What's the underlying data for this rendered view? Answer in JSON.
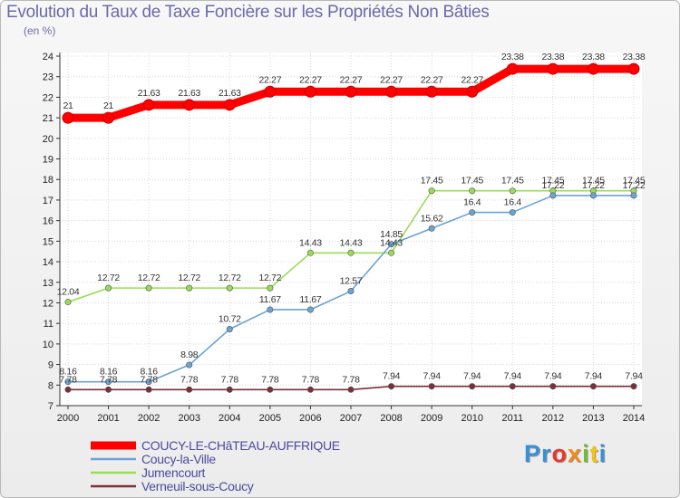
{
  "header": {
    "title": "Evolution du Taux de Taxe Foncière sur les Propriétés Non Bâties",
    "unit": "(en %)"
  },
  "logo": {
    "text": "Proxiti",
    "letters": [
      "P",
      "r",
      "o",
      "x",
      "i",
      "t",
      "i"
    ],
    "colors": [
      "#3a8fd6",
      "#3a8fd6",
      "#e8392c",
      "#f08a1c",
      "#6cbf2a",
      "#f0c419",
      "#3a8fd6"
    ]
  },
  "chart_data": {
    "type": "line",
    "title": "Evolution du Taux de Taxe Foncière sur les Propriétés Non Bâties",
    "ylabel": "(en %)",
    "xlabel": "",
    "ylim": [
      7,
      24
    ],
    "yticks": [
      7,
      8,
      9,
      10,
      11,
      12,
      13,
      14,
      15,
      16,
      17,
      18,
      19,
      20,
      21,
      22,
      23,
      24
    ],
    "categories": [
      "2000",
      "2001",
      "2002",
      "2003",
      "2004",
      "2005",
      "2006",
      "2007",
      "2008",
      "2009",
      "2010",
      "2011",
      "2012",
      "2013",
      "2014"
    ],
    "series": [
      {
        "name": "COUCY-LE-CHâTEAU-AUFFRIQUE",
        "color": "#ff0000",
        "labels_above": true,
        "values": [
          21,
          21,
          21.63,
          21.63,
          21.63,
          22.27,
          22.27,
          22.27,
          22.27,
          22.27,
          22.27,
          23.38,
          23.38,
          23.38,
          23.38
        ],
        "labels": [
          "21",
          "21",
          "21.63",
          "21.63",
          "21.63",
          "22.27",
          "22.27",
          "22.27",
          "22.27",
          "22.27",
          "22.27",
          "23.38",
          "23.38",
          "23.38",
          "23.38"
        ]
      },
      {
        "name": "Coucy-la-Ville",
        "color": "#6aa3d5",
        "labels_above": true,
        "values": [
          8.16,
          8.16,
          8.16,
          8.98,
          10.72,
          11.67,
          11.67,
          12.57,
          14.85,
          15.62,
          16.4,
          16.4,
          17.22,
          17.22,
          17.22
        ],
        "labels": [
          "8.16",
          "8.16",
          "8.16",
          "8.98",
          "10.72",
          "11.67",
          "11.67",
          "12.57",
          "14.85",
          "15.62",
          "16.4",
          "16.4",
          "17.22",
          "17.22",
          "17.22"
        ]
      },
      {
        "name": "Jumencourt",
        "color": "#99dd55",
        "labels_above": true,
        "values": [
          12.04,
          12.72,
          12.72,
          12.72,
          12.72,
          12.72,
          14.43,
          14.43,
          14.43,
          17.45,
          17.45,
          17.45,
          17.45,
          17.45,
          17.45
        ],
        "labels": [
          "12.04",
          "12.72",
          "12.72",
          "12.72",
          "12.72",
          "12.72",
          "14.43",
          "14.43",
          "14.43",
          "17.45",
          "17.45",
          "17.45",
          "17.45",
          "17.45",
          "17.45"
        ]
      },
      {
        "name": "Verneuil-sous-Coucy",
        "color": "#7b2f3a",
        "labels_above": true,
        "values": [
          7.78,
          7.78,
          7.78,
          7.78,
          7.78,
          7.78,
          7.78,
          7.78,
          7.94,
          7.94,
          7.94,
          7.94,
          7.94,
          7.94,
          7.94
        ],
        "labels": [
          "7.78",
          "7.78",
          "7.78",
          "7.78",
          "7.78",
          "7.78",
          "7.78",
          "7.78",
          "7.94",
          "7.94",
          "7.94",
          "7.94",
          "7.94",
          "7.94",
          "7.94"
        ]
      }
    ],
    "legend_position": "bottom-left",
    "grid": true
  }
}
